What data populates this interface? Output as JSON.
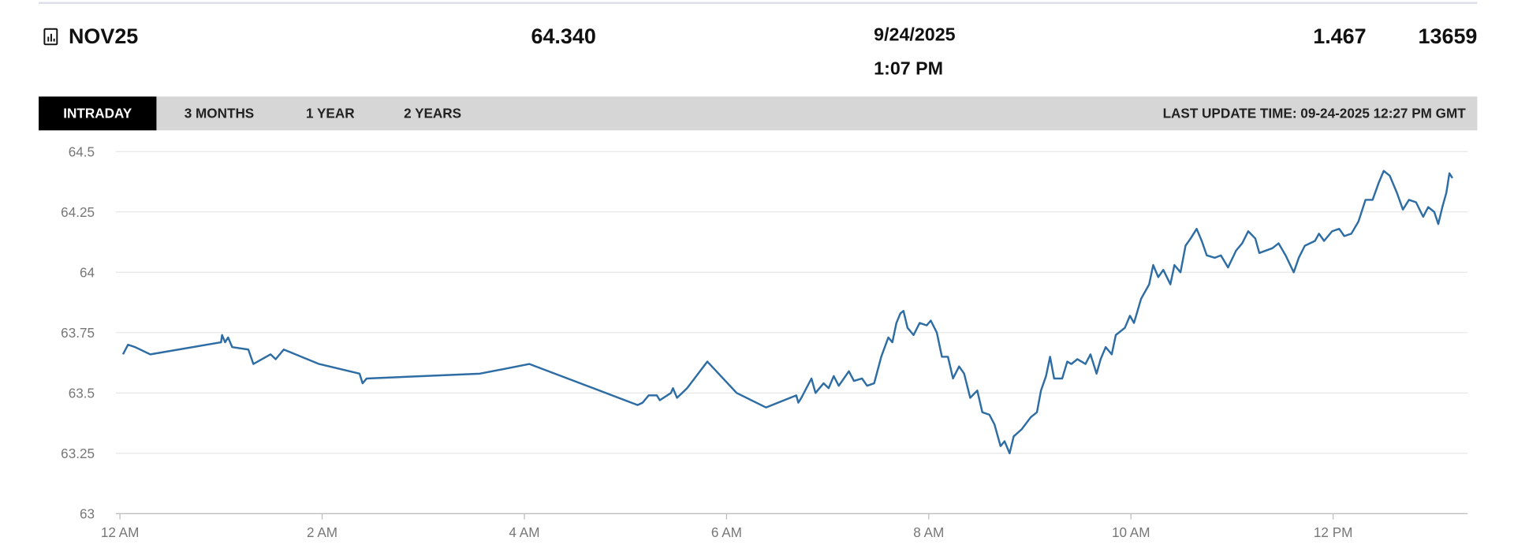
{
  "header": {
    "symbol": "NOV25",
    "price": "64.340",
    "date": "9/24/2025",
    "time": "1:07 PM",
    "change": "1.467",
    "volume": "13659"
  },
  "tabs": [
    "INTRADAY",
    "3 MONTHS",
    "1 YEAR",
    "2 YEARS"
  ],
  "last_update": "LAST UPDATE TIME: 09-24-2025 12:27 PM GMT",
  "chart_data": {
    "type": "line",
    "color": "#2e6da4",
    "grid": true,
    "xlim": [
      -0.04,
      13.33
    ],
    "ylim": [
      63,
      64.5
    ],
    "xticks": [
      {
        "value": 0,
        "label": "12 AM"
      },
      {
        "value": 2,
        "label": "2 AM"
      },
      {
        "value": 4,
        "label": "4 AM"
      },
      {
        "value": 6,
        "label": "6 AM"
      },
      {
        "value": 8,
        "label": "8 AM"
      },
      {
        "value": 10,
        "label": "10 AM"
      },
      {
        "value": 12,
        "label": "12 PM"
      }
    ],
    "yticks": [
      63,
      63.25,
      63.5,
      63.75,
      64,
      64.25,
      64.5
    ],
    "x": [
      0.03,
      0.08,
      0.15,
      0.3,
      1.0,
      1.01,
      1.04,
      1.07,
      1.11,
      1.27,
      1.32,
      1.49,
      1.54,
      1.62,
      1.97,
      2.37,
      2.4,
      2.44,
      3.56,
      4.05,
      5.12,
      5.17,
      5.23,
      5.31,
      5.34,
      5.45,
      5.47,
      5.51,
      5.61,
      5.81,
      6.1,
      6.39,
      6.69,
      6.71,
      6.74,
      6.79,
      6.84,
      6.88,
      6.96,
      7.01,
      7.06,
      7.11,
      7.21,
      7.26,
      7.34,
      7.39,
      7.46,
      7.53,
      7.6,
      7.64,
      7.68,
      7.72,
      7.75,
      7.79,
      7.85,
      7.91,
      7.98,
      8.02,
      8.08,
      8.13,
      8.19,
      8.24,
      8.3,
      8.35,
      8.41,
      8.48,
      8.53,
      8.6,
      8.65,
      8.71,
      8.75,
      8.8,
      8.84,
      8.92,
      9.01,
      9.07,
      9.11,
      9.16,
      9.2,
      9.24,
      9.32,
      9.37,
      9.41,
      9.47,
      9.55,
      9.6,
      9.66,
      9.7,
      9.75,
      9.81,
      9.85,
      9.94,
      9.99,
      10.03,
      10.1,
      10.18,
      10.22,
      10.27,
      10.32,
      10.39,
      10.43,
      10.49,
      10.54,
      10.59,
      10.65,
      10.7,
      10.75,
      10.83,
      10.89,
      10.96,
      11.04,
      11.1,
      11.16,
      11.23,
      11.27,
      11.4,
      11.46,
      11.53,
      11.61,
      11.66,
      11.72,
      11.82,
      11.86,
      11.91,
      11.99,
      12.06,
      12.11,
      12.18,
      12.25,
      12.32,
      12.39,
      12.45,
      12.5,
      12.56,
      12.63,
      12.69,
      12.75,
      12.82,
      12.89,
      12.94,
      13.0,
      13.04,
      13.08,
      13.12,
      13.15,
      13.18
    ],
    "values": [
      63.66,
      63.7,
      63.69,
      63.66,
      63.71,
      63.74,
      63.71,
      63.73,
      63.69,
      63.68,
      63.62,
      63.66,
      63.64,
      63.68,
      63.62,
      63.58,
      63.54,
      63.56,
      63.58,
      63.62,
      63.45,
      63.46,
      63.49,
      63.49,
      63.47,
      63.5,
      63.52,
      63.48,
      63.52,
      63.63,
      63.5,
      63.44,
      63.49,
      63.46,
      63.48,
      63.52,
      63.56,
      63.5,
      63.54,
      63.52,
      63.57,
      63.53,
      63.59,
      63.55,
      63.56,
      63.53,
      63.54,
      63.65,
      63.73,
      63.71,
      63.79,
      63.83,
      63.84,
      63.77,
      63.74,
      63.79,
      63.78,
      63.8,
      63.75,
      63.65,
      63.65,
      63.56,
      63.61,
      63.58,
      63.48,
      63.51,
      63.42,
      63.41,
      63.37,
      63.28,
      63.3,
      63.25,
      63.32,
      63.35,
      63.4,
      63.42,
      63.51,
      63.57,
      63.65,
      63.56,
      63.56,
      63.63,
      63.62,
      63.64,
      63.62,
      63.66,
      63.58,
      63.64,
      63.69,
      63.66,
      63.74,
      63.77,
      63.82,
      63.79,
      63.89,
      63.95,
      64.03,
      63.98,
      64.01,
      63.95,
      64.03,
      64.0,
      64.11,
      64.14,
      64.18,
      64.13,
      64.07,
      64.06,
      64.07,
      64.02,
      64.09,
      64.12,
      64.17,
      64.14,
      64.08,
      64.1,
      64.12,
      64.07,
      64.0,
      64.06,
      64.11,
      64.13,
      64.16,
      64.13,
      64.17,
      64.18,
      64.15,
      64.16,
      64.21,
      64.3,
      64.3,
      64.37,
      64.42,
      64.4,
      64.33,
      64.26,
      64.3,
      64.29,
      64.23,
      64.27,
      64.25,
      64.2,
      64.27,
      64.33,
      64.41,
      64.39
    ]
  }
}
